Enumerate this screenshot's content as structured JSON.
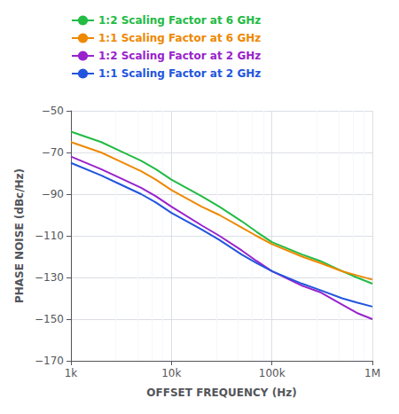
{
  "chart_data": {
    "type": "line",
    "x": [
      1000,
      2000,
      3000,
      5000,
      7000,
      10000,
      20000,
      30000,
      50000,
      70000,
      100000,
      200000,
      300000,
      500000,
      700000,
      1000000
    ],
    "series": [
      {
        "name": "1:2 Scaling Factor at 6 GHz",
        "color": "#22bb44",
        "values": [
          -60,
          -65,
          -69,
          -74,
          -78,
          -83,
          -91,
          -96,
          -103,
          -108,
          -113,
          -119,
          -122,
          -127,
          -130,
          -133
        ]
      },
      {
        "name": "1:1 Scaling Factor at 6 GHz",
        "color": "#ee8800",
        "values": [
          -65,
          -70,
          -74,
          -79,
          -83,
          -88,
          -96,
          -100,
          -106,
          -110,
          -114,
          -120,
          -123,
          -127,
          -129,
          -131
        ]
      },
      {
        "name": "1:2 Scaling Factor at 2 GHz",
        "color": "#9922cc",
        "values": [
          -72,
          -78,
          -82,
          -87,
          -91,
          -96,
          -105,
          -110,
          -117,
          -122,
          -127,
          -134,
          -137,
          -143,
          -147,
          -150
        ]
      },
      {
        "name": "1:1 Scaling Factor at 2 GHz",
        "color": "#2255dd",
        "values": [
          -75,
          -81,
          -85,
          -90,
          -94,
          -99,
          -107,
          -112,
          -119,
          -123,
          -127,
          -133,
          -136,
          -140,
          -142,
          -144
        ]
      }
    ],
    "xlabel": "OFFSET FREQUENCY (Hz)",
    "ylabel": "PHASE NOISE (dBc/Hz)",
    "log": "x",
    "xlim": [
      1000,
      1000000
    ],
    "xticks": [
      {
        "value": 1000,
        "label": "1k"
      },
      {
        "value": 10000,
        "label": "10k"
      },
      {
        "value": 100000,
        "label": "100k"
      },
      {
        "value": 1000000,
        "label": "1M"
      }
    ],
    "ylim": [
      -170,
      -50
    ],
    "yticks": [
      {
        "value": -170,
        "label": "−170"
      },
      {
        "value": -150,
        "label": "−150"
      },
      {
        "value": -130,
        "label": "−130"
      },
      {
        "value": -110,
        "label": "−110"
      },
      {
        "value": -90,
        "label": "−90"
      },
      {
        "value": -70,
        "label": "−70"
      },
      {
        "value": -50,
        "label": "−50"
      }
    ],
    "grid": true,
    "legend": "top"
  }
}
